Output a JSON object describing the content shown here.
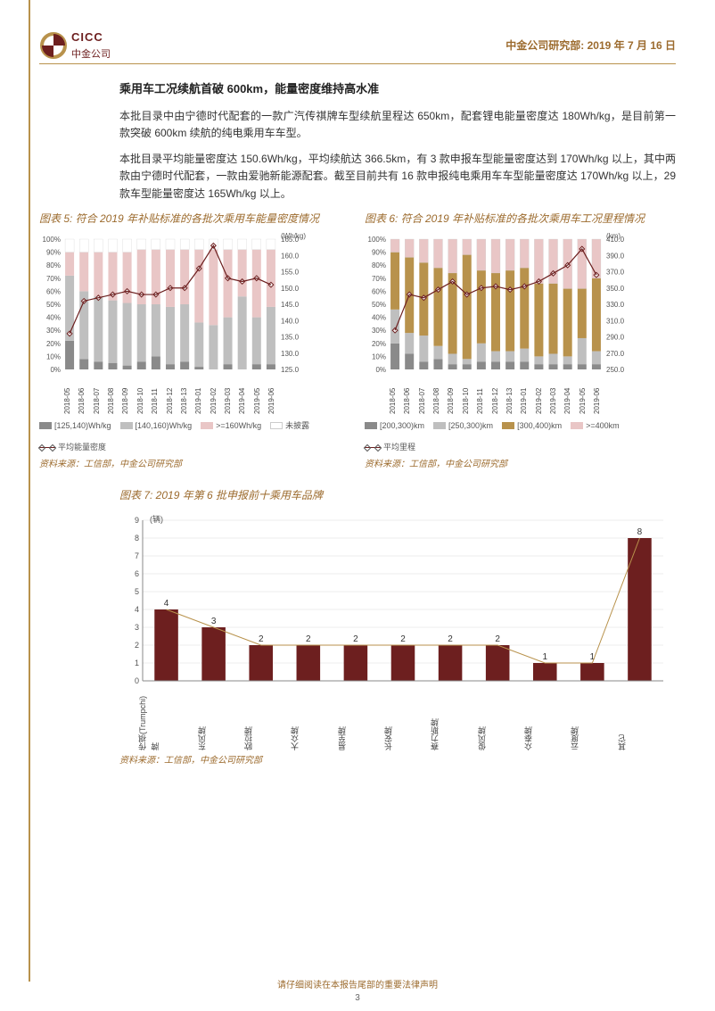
{
  "header": {
    "logo_top": "CICC",
    "logo_bottom": "中金公司",
    "dept": "中金公司研究部:",
    "date": "2019 年 7 月 16 日"
  },
  "section": {
    "title": "乘用车工况续航首破 600km，能量密度维持高水准",
    "p1": "本批目录中由宁德时代配套的一款广汽传祺牌车型续航里程达 650km，配套锂电能量密度达 180Wh/kg，是目前第一款突破 600km 续航的纯电乘用车车型。",
    "p2": "本批目录平均能量密度达 150.6Wh/kg，平均续航达 366.5km，有 3 款申报车型能量密度达到 170Wh/kg 以上，其中两款由宁德时代配套，一款由爱驰新能源配套。截至目前共有 16 款申报纯电乘用车车型能量密度达 170Wh/kg 以上，29 款车型能量密度达 165Wh/kg 以上。"
  },
  "chart5": {
    "title": "图表 5: 符合 2019 年补贴标准的各批次乘用车能量密度情况",
    "type": "stacked-bar-with-line",
    "y1_unit": "%",
    "y2_unit": "(Wh/kg)",
    "y1_ticks": [
      0,
      10,
      20,
      30,
      40,
      50,
      60,
      70,
      80,
      90,
      100
    ],
    "y2_ticks": [
      125.0,
      130.0,
      135.0,
      140.0,
      145.0,
      150.0,
      155.0,
      160.0,
      165.0
    ],
    "x": [
      "2018-05",
      "2018-06",
      "2018-07",
      "2018-08",
      "2018-09",
      "2018-10",
      "2018-11",
      "2018-12",
      "2018-13",
      "2019-01",
      "2019-02",
      "2019-03",
      "2019-04",
      "2019-05",
      "2019-06"
    ],
    "stack_keys": [
      "[125,140)Wh/kg",
      "[140,160)Wh/kg",
      ">=160Wh/kg",
      "未披露"
    ],
    "stack_colors": [
      "#8a8a8a",
      "#bfbfbf",
      "#e9c6c6",
      "#ffffff"
    ],
    "stacks": [
      [
        22,
        50,
        18,
        10
      ],
      [
        8,
        52,
        30,
        10
      ],
      [
        6,
        50,
        34,
        10
      ],
      [
        5,
        48,
        37,
        10
      ],
      [
        3,
        48,
        39,
        10
      ],
      [
        6,
        44,
        42,
        8
      ],
      [
        10,
        40,
        42,
        8
      ],
      [
        4,
        44,
        44,
        8
      ],
      [
        6,
        44,
        42,
        8
      ],
      [
        2,
        34,
        56,
        8
      ],
      [
        0,
        34,
        58,
        8
      ],
      [
        4,
        36,
        52,
        8
      ],
      [
        0,
        56,
        36,
        8
      ],
      [
        4,
        36,
        52,
        8
      ],
      [
        4,
        44,
        44,
        8
      ]
    ],
    "line_key": "平均能量密度",
    "line_color": "#6d1f1f",
    "line": [
      136,
      146,
      147,
      148,
      149,
      148,
      148,
      150,
      150,
      156,
      163,
      153,
      152,
      153,
      151
    ],
    "y2_min": 125,
    "y2_max": 165,
    "source": "资料来源：工信部，中金公司研究部"
  },
  "chart6": {
    "title": "图表 6: 符合 2019 年补贴标准的各批次乘用车工况里程情况",
    "type": "stacked-bar-with-line",
    "y1_unit": "%",
    "y2_unit": "(km)",
    "y1_ticks": [
      0,
      10,
      20,
      30,
      40,
      50,
      60,
      70,
      80,
      90,
      100
    ],
    "y2_ticks": [
      250.0,
      270.0,
      290.0,
      310.0,
      330.0,
      350.0,
      370.0,
      390.0,
      410.0
    ],
    "x": [
      "2018-05",
      "2018-06",
      "2018-07",
      "2018-08",
      "2018-09",
      "2018-10",
      "2018-11",
      "2018-12",
      "2018-13",
      "2019-01",
      "2019-02",
      "2019-03",
      "2019-04",
      "2019-05",
      "2019-06"
    ],
    "stack_keys": [
      "[200,300)km",
      "[250,300)km",
      "[300,400)km",
      ">=400km"
    ],
    "stack_colors": [
      "#8a8a8a",
      "#bfbfbf",
      "#b8924c",
      "#e9c6c6"
    ],
    "stacks": [
      [
        20,
        26,
        44,
        10
      ],
      [
        12,
        16,
        58,
        14
      ],
      [
        6,
        20,
        56,
        18
      ],
      [
        8,
        10,
        60,
        22
      ],
      [
        4,
        8,
        62,
        26
      ],
      [
        4,
        4,
        80,
        12
      ],
      [
        6,
        14,
        56,
        24
      ],
      [
        6,
        8,
        60,
        26
      ],
      [
        6,
        8,
        62,
        24
      ],
      [
        6,
        10,
        62,
        22
      ],
      [
        4,
        6,
        56,
        34
      ],
      [
        4,
        8,
        54,
        34
      ],
      [
        4,
        6,
        52,
        38
      ],
      [
        4,
        20,
        38,
        38
      ],
      [
        4,
        10,
        56,
        30
      ]
    ],
    "line_key": "平均里程",
    "line_color": "#6d1f1f",
    "line": [
      298,
      342,
      338,
      348,
      358,
      342,
      350,
      352,
      348,
      352,
      358,
      368,
      378,
      398,
      366
    ],
    "y2_min": 250,
    "y2_max": 410,
    "source": "资料来源：工信部，中金公司研究部"
  },
  "chart7": {
    "title": "图表 7: 2019 年第 6 批申报前十乘用车品牌",
    "type": "bar",
    "y_unit": "(辆)",
    "ylim": [
      0,
      9
    ],
    "ytick_step": 1,
    "x": [
      "传祺(Trumpchi)牌",
      "东风牌",
      "欧拉牌",
      "大众牌",
      "易至牌",
      "长安牌",
      "赛力斯牌",
      "俊风牌",
      "众泰牌",
      "云度牌",
      "其它"
    ],
    "values": [
      4,
      3,
      2,
      2,
      2,
      2,
      2,
      2,
      1,
      1,
      8
    ],
    "bar_color": "#6d1f1f",
    "label_color": "#333",
    "line_overlay_color": "#b8924c",
    "source": "资料来源：工信部，中金公司研究部"
  },
  "footer": {
    "disclaimer": "请仔细阅读在本报告尾部的重要法律声明",
    "page": "3"
  }
}
